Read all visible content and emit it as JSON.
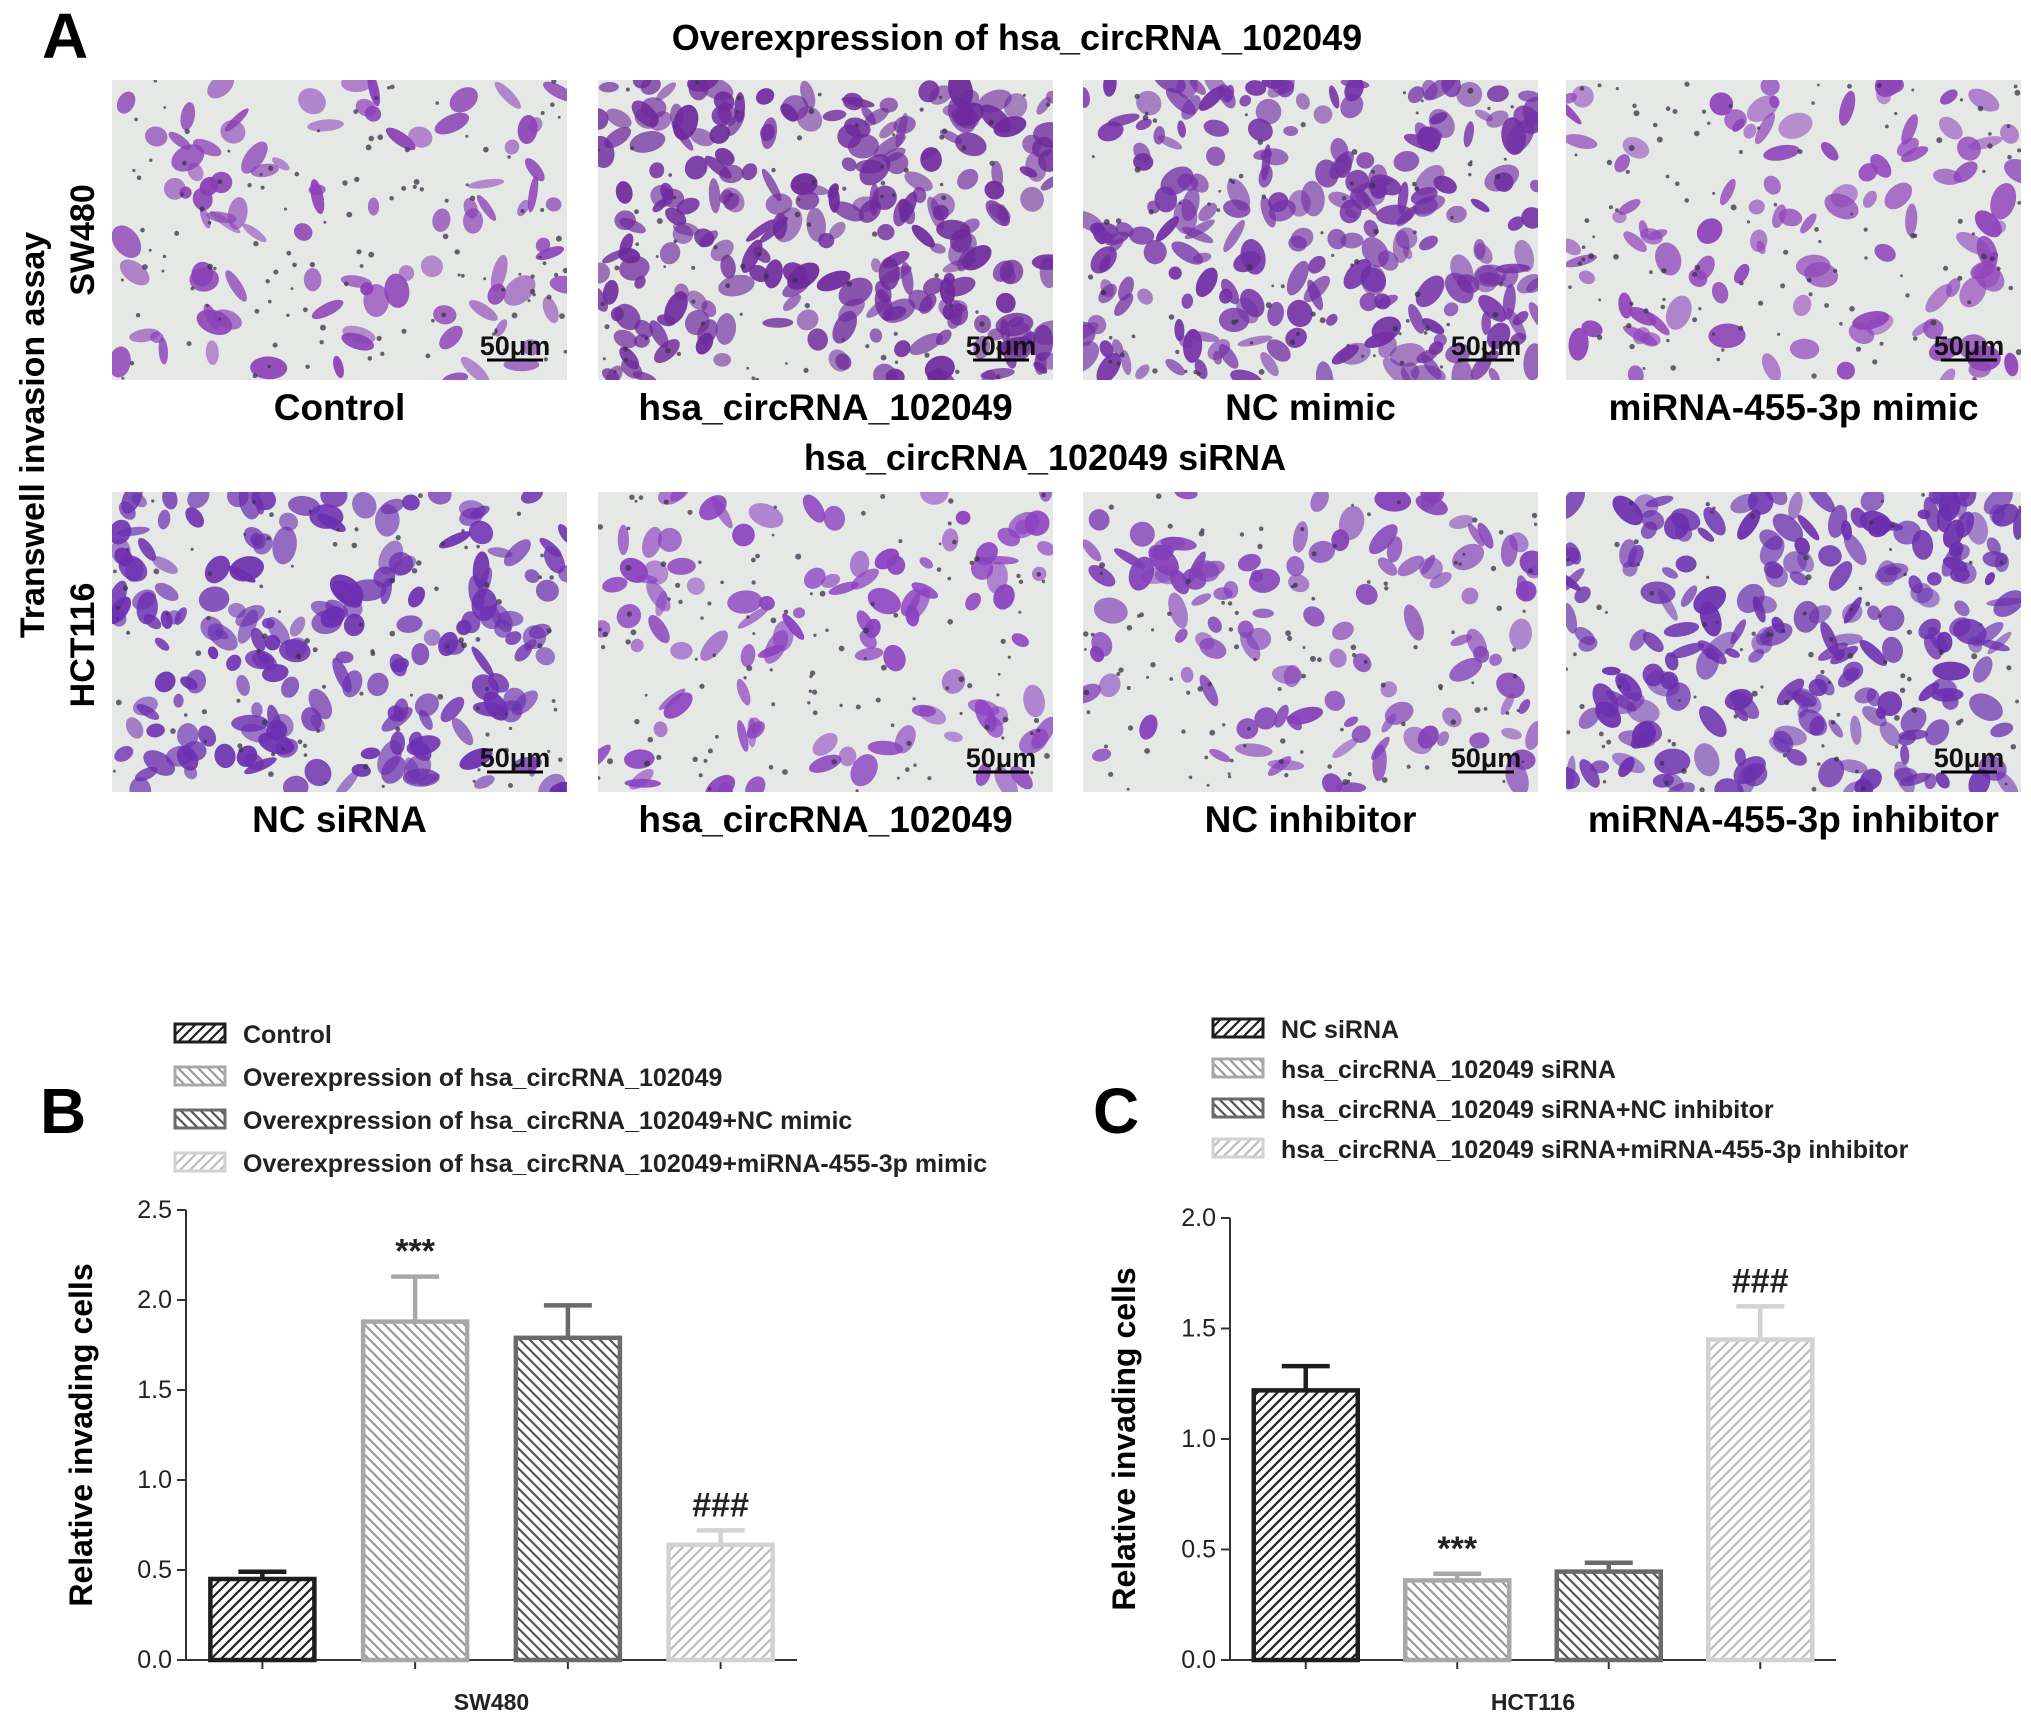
{
  "panel_a": {
    "letter": "A",
    "side_title": "Transwell invasion assay",
    "rows": [
      {
        "group_title": "Overexpression of hsa_circRNA_102049",
        "cell_line": "SW480",
        "images": [
          {
            "caption": "Control",
            "scale_bar": "50μm",
            "density": 0.35,
            "cell_color": "#8a3fb6"
          },
          {
            "caption": "hsa_circRNA_102049",
            "scale_bar": "50μm",
            "density": 0.95,
            "cell_color": "#6e2a9c"
          },
          {
            "caption": "NC mimic",
            "scale_bar": "50μm",
            "density": 0.9,
            "cell_color": "#7330a6"
          },
          {
            "caption": "miRNA-455-3p mimic",
            "scale_bar": "50μm",
            "density": 0.4,
            "cell_color": "#8e44ba"
          }
        ]
      },
      {
        "group_title": "hsa_circRNA_102049 siRNA",
        "cell_line": "HCT116",
        "images": [
          {
            "caption": "NC siRNA",
            "scale_bar": "50μm",
            "density": 0.75,
            "cell_color": "#6b2fb0"
          },
          {
            "caption": "hsa_circRNA_102049",
            "scale_bar": "50μm",
            "density": 0.4,
            "cell_color": "#8a40c0"
          },
          {
            "caption": "NC inhibitor",
            "scale_bar": "50μm",
            "density": 0.45,
            "cell_color": "#8240b8"
          },
          {
            "caption": "miRNA-455-3p inhibitor",
            "scale_bar": "50μm",
            "density": 0.85,
            "cell_color": "#6a2fae"
          }
        ]
      }
    ]
  },
  "chart_data": [
    {
      "panel": "B",
      "type": "bar",
      "categories": [
        "Control",
        "Overexpression of hsa_circRNA_102049",
        "Overexpression of hsa_circRNA_102049+NC mimic",
        "Overexpression of hsa_circRNA_102049+miRNA-455-3p mimic"
      ],
      "values": [
        0.45,
        1.88,
        1.79,
        0.64
      ],
      "errors": [
        0.04,
        0.25,
        0.18,
        0.08
      ],
      "significance": [
        "",
        "***",
        "",
        "###"
      ],
      "xlabel": "SW480",
      "ylabel": "Relative invading cells",
      "ylim": [
        0,
        2.5
      ],
      "yticks": [
        "0.0",
        "0.5",
        "1.0",
        "1.5",
        "2.0",
        "2.5"
      ],
      "grid": false,
      "legend_position": "top",
      "styles": [
        {
          "stroke": "#1e1e1e",
          "hatch": "#1e1e1e",
          "hatch_dir": "forward"
        },
        {
          "stroke": "#a8a8a8",
          "hatch": "#9a9a9a",
          "hatch_dir": "back"
        },
        {
          "stroke": "#6a6a6a",
          "hatch": "#555555",
          "hatch_dir": "back"
        },
        {
          "stroke": "#d2d2d2",
          "hatch": "#bdbdbd",
          "hatch_dir": "forward"
        }
      ]
    },
    {
      "panel": "C",
      "type": "bar",
      "categories": [
        "NC siRNA",
        "hsa_circRNA_102049 siRNA",
        "hsa_circRNA_102049 siRNA+NC inhibitor",
        "hsa_circRNA_102049 siRNA+miRNA-455-3p inhibitor"
      ],
      "values": [
        1.22,
        0.36,
        0.4,
        1.45
      ],
      "errors": [
        0.11,
        0.03,
        0.04,
        0.15
      ],
      "significance": [
        "",
        "***",
        "",
        "###"
      ],
      "xlabel": "HCT116",
      "ylabel": "Relative invading cells",
      "ylim": [
        0,
        2.0
      ],
      "yticks": [
        "0.0",
        "0.5",
        "1.0",
        "1.5",
        "2.0"
      ],
      "grid": false,
      "legend_position": "top",
      "styles": [
        {
          "stroke": "#1e1e1e",
          "hatch": "#1e1e1e",
          "hatch_dir": "forward"
        },
        {
          "stroke": "#a8a8a8",
          "hatch": "#9a9a9a",
          "hatch_dir": "back"
        },
        {
          "stroke": "#6a6a6a",
          "hatch": "#555555",
          "hatch_dir": "back"
        },
        {
          "stroke": "#d2d2d2",
          "hatch": "#bdbdbd",
          "hatch_dir": "forward"
        }
      ]
    }
  ]
}
